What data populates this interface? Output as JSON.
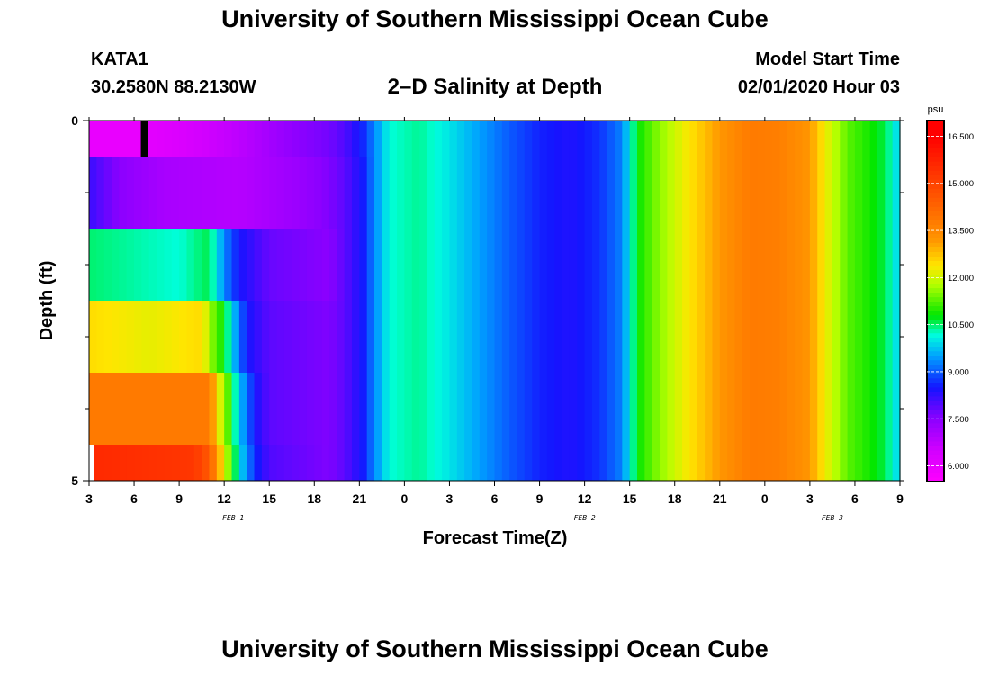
{
  "header": {
    "title": "University of Southern Mississippi Ocean Cube",
    "station": "KATA1",
    "coords": "30.2580N 88.2130W",
    "subtitle": "2–D Salinity at Depth",
    "model_label": "Model Start Time",
    "model_time": "02/01/2020 Hour 03"
  },
  "footer": {
    "title": "University of Southern Mississippi Ocean Cube"
  },
  "chart_data": {
    "type": "heatmap",
    "title": "2–D Salinity at Depth",
    "xlabel": "Forecast Time(Z)",
    "ylabel": "Depth (ft)",
    "ylim": [
      0,
      5
    ],
    "y_ticks": [
      "0",
      "5"
    ],
    "x_range_hours": [
      0,
      54
    ],
    "x_ticks": [
      {
        "h": 0,
        "label": "3"
      },
      {
        "h": 3,
        "label": "6"
      },
      {
        "h": 6,
        "label": "9"
      },
      {
        "h": 9,
        "label": "12"
      },
      {
        "h": 12,
        "label": "15"
      },
      {
        "h": 15,
        "label": "18"
      },
      {
        "h": 18,
        "label": "21"
      },
      {
        "h": 21,
        "label": "0"
      },
      {
        "h": 24,
        "label": "3"
      },
      {
        "h": 27,
        "label": "6"
      },
      {
        "h": 30,
        "label": "9"
      },
      {
        "h": 33,
        "label": "12"
      },
      {
        "h": 36,
        "label": "15"
      },
      {
        "h": 39,
        "label": "18"
      },
      {
        "h": 42,
        "label": "21"
      },
      {
        "h": 45,
        "label": "0"
      },
      {
        "h": 48,
        "label": "3"
      },
      {
        "h": 51,
        "label": "6"
      },
      {
        "h": 54,
        "label": "9"
      }
    ],
    "date_labels": [
      {
        "h": 9.6,
        "label": "FEB 1"
      },
      {
        "h": 33.0,
        "label": "FEB 2"
      },
      {
        "h": 49.5,
        "label": "FEB 3"
      }
    ],
    "colorbar": {
      "unit": "psu",
      "min": 5.5,
      "max": 17.0,
      "tick_labels": [
        "6.000",
        "7.500",
        "9.000",
        "10.500",
        "12.000",
        "13.500",
        "15.000",
        "16.500"
      ],
      "tick_values": [
        6.0,
        7.5,
        9.0,
        10.5,
        12.0,
        13.5,
        15.0,
        16.5
      ]
    },
    "layers": [
      {
        "depth_ft": 0.0,
        "points": [
          [
            0,
            6.0
          ],
          [
            3.5,
            6.0
          ],
          [
            3.8,
            6.1
          ],
          [
            6,
            6.3
          ],
          [
            10,
            6.8
          ],
          [
            14,
            7.5
          ],
          [
            16,
            7.7
          ],
          [
            17,
            8.0
          ],
          [
            18.2,
            8.6
          ],
          [
            19,
            9.3
          ],
          [
            20,
            10.2
          ],
          [
            22,
            10.4
          ],
          [
            24,
            10.0
          ],
          [
            26,
            9.5
          ],
          [
            28,
            9.0
          ],
          [
            30,
            8.6
          ],
          [
            32,
            8.4
          ],
          [
            34,
            8.7
          ],
          [
            35.5,
            9.3
          ],
          [
            36.5,
            10.8
          ],
          [
            38,
            11.6
          ],
          [
            40,
            12.4
          ],
          [
            42,
            13.2
          ],
          [
            44,
            13.8
          ],
          [
            46,
            13.7
          ],
          [
            48,
            13.2
          ],
          [
            49,
            12.3
          ],
          [
            50.5,
            11.3
          ],
          [
            52,
            10.9
          ],
          [
            53,
            10.6
          ],
          [
            54,
            9.8
          ]
        ]
      },
      {
        "depth_ft": 1.0,
        "points": [
          [
            0,
            8.2
          ],
          [
            2,
            7.5
          ],
          [
            5,
            7.1
          ],
          [
            10,
            6.9
          ],
          [
            14,
            7.3
          ],
          [
            16,
            7.6
          ],
          [
            17,
            7.9
          ],
          [
            18.2,
            8.5
          ],
          [
            19,
            9.3
          ],
          [
            20,
            10.2
          ],
          [
            22,
            10.4
          ],
          [
            24,
            10.0
          ],
          [
            26,
            9.5
          ],
          [
            28,
            9.0
          ],
          [
            30,
            8.6
          ],
          [
            32,
            8.4
          ],
          [
            34,
            8.7
          ],
          [
            35.5,
            9.3
          ],
          [
            36.5,
            10.8
          ],
          [
            38,
            11.6
          ],
          [
            40,
            12.4
          ],
          [
            42,
            13.2
          ],
          [
            44,
            13.8
          ],
          [
            46,
            13.7
          ],
          [
            48,
            13.2
          ],
          [
            49,
            12.3
          ],
          [
            50.5,
            11.3
          ],
          [
            52,
            10.9
          ],
          [
            53,
            10.6
          ],
          [
            54,
            9.8
          ]
        ]
      },
      {
        "depth_ft": 2.0,
        "points": [
          [
            0,
            10.5
          ],
          [
            6,
            10.2
          ],
          [
            8,
            10.6
          ],
          [
            8.5,
            10.0
          ],
          [
            9,
            9.3
          ],
          [
            10,
            8.5
          ],
          [
            12,
            7.8
          ],
          [
            16,
            7.5
          ],
          [
            17,
            7.9
          ],
          [
            18.2,
            8.5
          ],
          [
            19,
            9.3
          ],
          [
            20,
            10.2
          ],
          [
            22,
            10.4
          ],
          [
            24,
            10.0
          ],
          [
            26,
            9.5
          ],
          [
            28,
            9.0
          ],
          [
            30,
            8.6
          ],
          [
            32,
            8.4
          ],
          [
            34,
            8.7
          ],
          [
            35.5,
            9.3
          ],
          [
            36.5,
            10.8
          ],
          [
            38,
            11.6
          ],
          [
            40,
            12.4
          ],
          [
            42,
            13.2
          ],
          [
            44,
            13.8
          ],
          [
            46,
            13.7
          ],
          [
            48,
            13.2
          ],
          [
            49,
            12.3
          ],
          [
            50.5,
            11.3
          ],
          [
            52,
            10.9
          ],
          [
            53,
            10.6
          ],
          [
            54,
            9.8
          ]
        ]
      },
      {
        "depth_ft": 3.0,
        "points": [
          [
            0,
            12.5
          ],
          [
            4,
            12.2
          ],
          [
            7.5,
            12.5
          ],
          [
            8.2,
            11.5
          ],
          [
            9,
            10.8
          ],
          [
            9.8,
            9.5
          ],
          [
            10.5,
            8.5
          ],
          [
            12,
            7.9
          ],
          [
            16,
            7.6
          ],
          [
            17,
            7.9
          ],
          [
            18.2,
            8.5
          ],
          [
            19,
            9.3
          ],
          [
            20,
            10.2
          ],
          [
            22,
            10.4
          ],
          [
            24,
            10.0
          ],
          [
            26,
            9.5
          ],
          [
            28,
            9.0
          ],
          [
            30,
            8.6
          ],
          [
            32,
            8.4
          ],
          [
            34,
            8.7
          ],
          [
            35.5,
            9.3
          ],
          [
            36.5,
            10.8
          ],
          [
            38,
            11.6
          ],
          [
            40,
            12.4
          ],
          [
            42,
            13.2
          ],
          [
            44,
            13.8
          ],
          [
            46,
            13.7
          ],
          [
            48,
            13.2
          ],
          [
            49,
            12.3
          ],
          [
            50.5,
            11.3
          ],
          [
            52,
            10.9
          ],
          [
            53,
            10.6
          ],
          [
            54,
            9.8
          ]
        ]
      },
      {
        "depth_ft": 4.0,
        "points": [
          [
            0,
            13.8
          ],
          [
            8,
            13.8
          ],
          [
            8.5,
            12.5
          ],
          [
            9.3,
            11.2
          ],
          [
            10,
            9.8
          ],
          [
            11,
            8.5
          ],
          [
            12,
            7.9
          ],
          [
            16,
            7.6
          ],
          [
            17,
            7.9
          ],
          [
            18.2,
            8.5
          ],
          [
            19,
            9.3
          ],
          [
            20,
            10.2
          ],
          [
            22,
            10.4
          ],
          [
            24,
            10.0
          ],
          [
            26,
            9.5
          ],
          [
            28,
            9.0
          ],
          [
            30,
            8.6
          ],
          [
            32,
            8.4
          ],
          [
            34,
            8.7
          ],
          [
            35.5,
            9.3
          ],
          [
            36.5,
            10.8
          ],
          [
            38,
            11.6
          ],
          [
            40,
            12.4
          ],
          [
            42,
            13.2
          ],
          [
            44,
            13.8
          ],
          [
            46,
            13.7
          ],
          [
            48,
            13.2
          ],
          [
            49,
            12.3
          ],
          [
            50.5,
            11.3
          ],
          [
            52,
            10.9
          ],
          [
            53,
            10.6
          ],
          [
            54,
            9.8
          ]
        ]
      },
      {
        "depth_ft": 5.0,
        "points": [
          [
            0,
            15.6
          ],
          [
            7,
            15.3
          ],
          [
            8,
            14.5
          ],
          [
            9,
            12.2
          ],
          [
            10,
            10.0
          ],
          [
            11,
            8.7
          ],
          [
            12,
            8.0
          ],
          [
            16,
            7.6
          ],
          [
            17,
            7.9
          ],
          [
            18.2,
            8.5
          ],
          [
            19,
            9.3
          ],
          [
            20,
            10.2
          ],
          [
            22,
            10.4
          ],
          [
            24,
            10.0
          ],
          [
            26,
            9.5
          ],
          [
            28,
            9.0
          ],
          [
            30,
            8.6
          ],
          [
            32,
            8.4
          ],
          [
            34,
            8.7
          ],
          [
            35.5,
            9.3
          ],
          [
            36.5,
            10.8
          ],
          [
            38,
            11.6
          ],
          [
            40,
            12.4
          ],
          [
            42,
            13.2
          ],
          [
            44,
            13.8
          ],
          [
            46,
            13.7
          ],
          [
            48,
            13.2
          ],
          [
            49,
            12.3
          ],
          [
            50.5,
            11.3
          ],
          [
            52,
            10.9
          ],
          [
            53,
            10.6
          ],
          [
            54,
            9.8
          ]
        ]
      }
    ],
    "missing_cells": [
      {
        "depth_ft": 0.0,
        "h": 3.45
      }
    ]
  }
}
